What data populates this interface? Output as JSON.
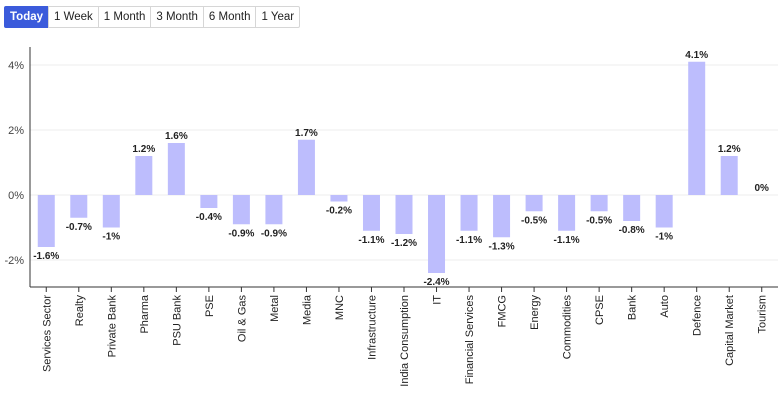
{
  "tabs": [
    {
      "label": "Today",
      "active": true
    },
    {
      "label": "1 Week",
      "active": false
    },
    {
      "label": "1 Month",
      "active": false
    },
    {
      "label": "3 Month",
      "active": false
    },
    {
      "label": "6 Month",
      "active": false
    },
    {
      "label": "1 Year",
      "active": false
    }
  ],
  "colors": {
    "bar": "#bdbdfd",
    "grid": "#ececec",
    "axis": "#333333",
    "active_tab": "#3b5bdb"
  },
  "chart_data": {
    "type": "bar",
    "categories": [
      "Services Sector",
      "Realty",
      "Private Bank",
      "Pharma",
      "PSU Bank",
      "PSE",
      "Oil & Gas",
      "Metal",
      "Media",
      "MNC",
      "Infrastructure",
      "India Consumption",
      "IT",
      "Financial Services",
      "FMCG",
      "Energy",
      "Commodities",
      "CPSE",
      "Bank",
      "Auto",
      "Defence",
      "Capital Market",
      "Tourism"
    ],
    "values": [
      -1.6,
      -0.7,
      -1,
      1.2,
      1.6,
      -0.4,
      -0.9,
      -0.9,
      1.7,
      -0.2,
      -1.1,
      -1.2,
      -2.4,
      -1.1,
      -1.3,
      -0.5,
      -1.1,
      -0.5,
      -0.8,
      -1,
      4.1,
      1.2,
      0
    ],
    "data_labels": [
      "-1.6%",
      "-0.7%",
      "-1%",
      "1.2%",
      "1.6%",
      "-0.4%",
      "-0.9%",
      "-0.9%",
      "1.7%",
      "-0.2%",
      "-1.1%",
      "-1.2%",
      "-2.4%",
      "-1.1%",
      "-1.3%",
      "-0.5%",
      "-1.1%",
      "-0.5%",
      "-0.8%",
      "-1%",
      "4.1%",
      "1.2%",
      "0%"
    ],
    "yticks": [
      4,
      2,
      0,
      -2
    ],
    "ytick_labels": [
      "4%",
      "2%",
      "0%",
      "-2%"
    ],
    "ylim": [
      -2.8,
      4.5
    ],
    "grid": true,
    "xlabel": "",
    "ylabel": ""
  }
}
